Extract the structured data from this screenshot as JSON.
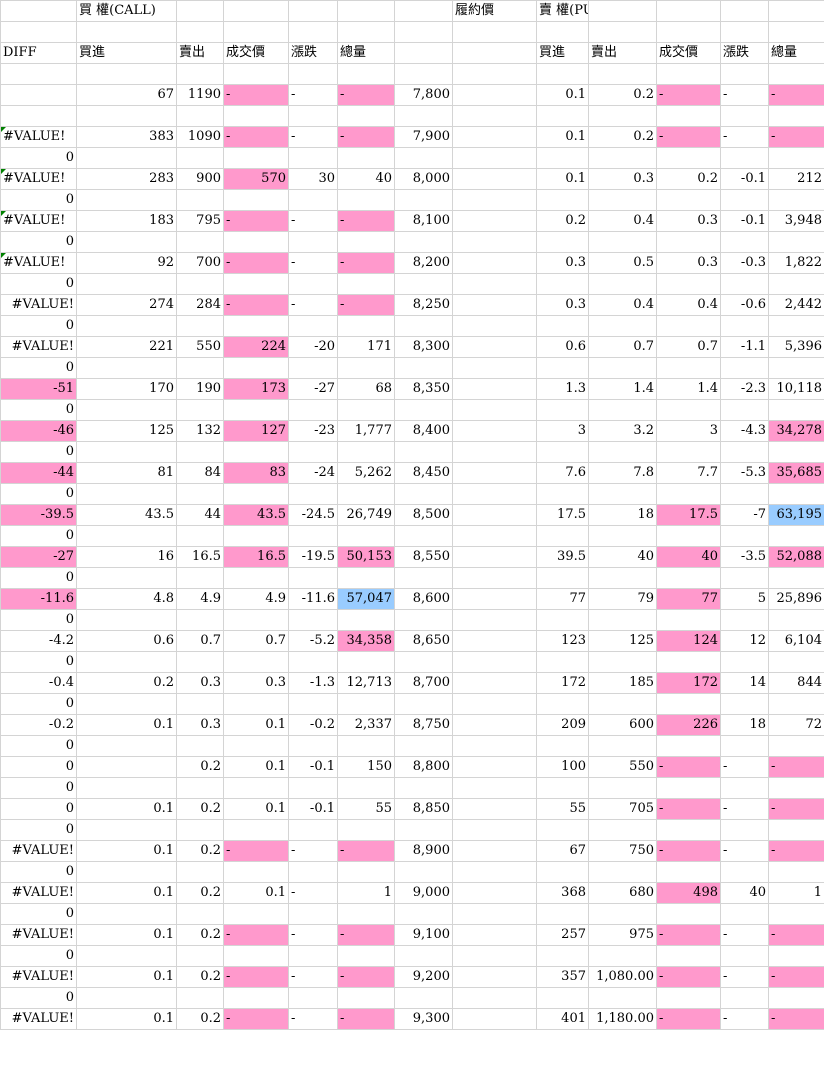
{
  "header1": {
    "call_title": "買 權(CALL)",
    "strike_title": "履約價",
    "put_title": "賣 權(PUT)"
  },
  "header2": {
    "diff": "DIFF",
    "call_bid": "買進",
    "call_ask": "賣出",
    "call_last": "成交價",
    "call_chg": "漲跌",
    "call_vol": "總量",
    "put_bid": "買進",
    "put_ask": "賣出",
    "put_last": "成交價",
    "put_chg": "漲跌",
    "put_vol": "總量"
  },
  "columns": [
    "diff",
    "call_bid",
    "call_ask",
    "call_last",
    "call_chg",
    "call_vol",
    "strike",
    "put_bid",
    "put_ask",
    "put_last",
    "put_chg",
    "put_vol"
  ],
  "rows": [
    {
      "sub": "",
      "diff": "",
      "call_bid": "67",
      "call_ask": "1190",
      "call_last": "-",
      "call_chg": "-",
      "call_vol": "-",
      "strike": "7,800",
      "put_bid": "0.1",
      "put_ask": "0.2",
      "put_last": "-",
      "put_chg": "-",
      "put_vol": "-"
    },
    {
      "sub": "",
      "diff": "#VALUE!",
      "call_bid": "383",
      "call_ask": "1090",
      "call_last": "-",
      "call_chg": "-",
      "call_vol": "-",
      "strike": "7,900",
      "put_bid": "0.1",
      "put_ask": "0.2",
      "put_last": "-",
      "put_chg": "-",
      "put_vol": "-"
    },
    {
      "sub": "0",
      "diff": "#VALUE!",
      "call_bid": "283",
      "call_ask": "900",
      "call_last": "570",
      "call_chg": "30",
      "call_vol": "40",
      "strike": "8,000",
      "put_bid": "0.1",
      "put_ask": "0.3",
      "put_last": "0.2",
      "put_chg": "-0.1",
      "put_vol": "212"
    },
    {
      "sub": "0",
      "diff": "#VALUE!",
      "call_bid": "183",
      "call_ask": "795",
      "call_last": "-",
      "call_chg": "-",
      "call_vol": "-",
      "strike": "8,100",
      "put_bid": "0.2",
      "put_ask": "0.4",
      "put_last": "0.3",
      "put_chg": "-0.1",
      "put_vol": "3,948"
    },
    {
      "sub": "0",
      "diff": "#VALUE!",
      "call_bid": "92",
      "call_ask": "700",
      "call_last": "-",
      "call_chg": "-",
      "call_vol": "-",
      "strike": "8,200",
      "put_bid": "0.3",
      "put_ask": "0.5",
      "put_last": "0.3",
      "put_chg": "-0.3",
      "put_vol": "1,822"
    },
    {
      "sub": "0",
      "diff": "#VALUE!",
      "call_bid": "274",
      "call_ask": "284",
      "call_last": "-",
      "call_chg": "-",
      "call_vol": "-",
      "strike": "8,250",
      "put_bid": "0.3",
      "put_ask": "0.4",
      "put_last": "0.4",
      "put_chg": "-0.6",
      "put_vol": "2,442"
    },
    {
      "sub": "0",
      "diff": "#VALUE!",
      "call_bid": "221",
      "call_ask": "550",
      "call_last": "224",
      "call_chg": "-20",
      "call_vol": "171",
      "strike": "8,300",
      "put_bid": "0.6",
      "put_ask": "0.7",
      "put_last": "0.7",
      "put_chg": "-1.1",
      "put_vol": "5,396"
    },
    {
      "sub": "0",
      "diff": "-51",
      "call_bid": "170",
      "call_ask": "190",
      "call_last": "173",
      "call_chg": "-27",
      "call_vol": "68",
      "strike": "8,350",
      "put_bid": "1.3",
      "put_ask": "1.4",
      "put_last": "1.4",
      "put_chg": "-2.3",
      "put_vol": "10,118"
    },
    {
      "sub": "0",
      "diff": "-46",
      "call_bid": "125",
      "call_ask": "132",
      "call_last": "127",
      "call_chg": "-23",
      "call_vol": "1,777",
      "strike": "8,400",
      "put_bid": "3",
      "put_ask": "3.2",
      "put_last": "3",
      "put_chg": "-4.3",
      "put_vol": "34,278"
    },
    {
      "sub": "0",
      "diff": "-44",
      "call_bid": "81",
      "call_ask": "84",
      "call_last": "83",
      "call_chg": "-24",
      "call_vol": "5,262",
      "strike": "8,450",
      "put_bid": "7.6",
      "put_ask": "7.8",
      "put_last": "7.7",
      "put_chg": "-5.3",
      "put_vol": "35,685"
    },
    {
      "sub": "0",
      "diff": "-39.5",
      "call_bid": "43.5",
      "call_ask": "44",
      "call_last": "43.5",
      "call_chg": "-24.5",
      "call_vol": "26,749",
      "strike": "8,500",
      "put_bid": "17.5",
      "put_ask": "18",
      "put_last": "17.5",
      "put_chg": "-7",
      "put_vol": "63,195"
    },
    {
      "sub": "0",
      "diff": "-27",
      "call_bid": "16",
      "call_ask": "16.5",
      "call_last": "16.5",
      "call_chg": "-19.5",
      "call_vol": "50,153",
      "strike": "8,550",
      "put_bid": "39.5",
      "put_ask": "40",
      "put_last": "40",
      "put_chg": "-3.5",
      "put_vol": "52,088"
    },
    {
      "sub": "0",
      "diff": "-11.6",
      "call_bid": "4.8",
      "call_ask": "4.9",
      "call_last": "4.9",
      "call_chg": "-11.6",
      "call_vol": "57,047",
      "strike": "8,600",
      "put_bid": "77",
      "put_ask": "79",
      "put_last": "77",
      "put_chg": "5",
      "put_vol": "25,896"
    },
    {
      "sub": "0",
      "diff": "-4.2",
      "call_bid": "0.6",
      "call_ask": "0.7",
      "call_last": "0.7",
      "call_chg": "-5.2",
      "call_vol": "34,358",
      "strike": "8,650",
      "put_bid": "123",
      "put_ask": "125",
      "put_last": "124",
      "put_chg": "12",
      "put_vol": "6,104"
    },
    {
      "sub": "0",
      "diff": "-0.4",
      "call_bid": "0.2",
      "call_ask": "0.3",
      "call_last": "0.3",
      "call_chg": "-1.3",
      "call_vol": "12,713",
      "strike": "8,700",
      "put_bid": "172",
      "put_ask": "185",
      "put_last": "172",
      "put_chg": "14",
      "put_vol": "844"
    },
    {
      "sub": "0",
      "diff": "-0.2",
      "call_bid": "0.1",
      "call_ask": "0.3",
      "call_last": "0.1",
      "call_chg": "-0.2",
      "call_vol": "2,337",
      "strike": "8,750",
      "put_bid": "209",
      "put_ask": "600",
      "put_last": "226",
      "put_chg": "18",
      "put_vol": "72"
    },
    {
      "sub": "0",
      "diff": "0",
      "call_bid": "",
      "call_ask": "0.2",
      "call_last": "0.1",
      "call_chg": "-0.1",
      "call_vol": "150",
      "strike": "8,800",
      "put_bid": "100",
      "put_ask": "550",
      "put_last": "-",
      "put_chg": "-",
      "put_vol": "-"
    },
    {
      "sub": "0",
      "diff": "0",
      "call_bid": "0.1",
      "call_ask": "0.2",
      "call_last": "0.1",
      "call_chg": "-0.1",
      "call_vol": "55",
      "strike": "8,850",
      "put_bid": "55",
      "put_ask": "705",
      "put_last": "-",
      "put_chg": "-",
      "put_vol": "-"
    },
    {
      "sub": "0",
      "diff": "#VALUE!",
      "call_bid": "0.1",
      "call_ask": "0.2",
      "call_last": "-",
      "call_chg": "-",
      "call_vol": "-",
      "strike": "8,900",
      "put_bid": "67",
      "put_ask": "750",
      "put_last": "-",
      "put_chg": "-",
      "put_vol": "-"
    },
    {
      "sub": "0",
      "diff": "#VALUE!",
      "call_bid": "0.1",
      "call_ask": "0.2",
      "call_last": "0.1",
      "call_chg": "-",
      "call_vol": "1",
      "strike": "9,000",
      "put_bid": "368",
      "put_ask": "680",
      "put_last": "498",
      "put_chg": "40",
      "put_vol": "1"
    },
    {
      "sub": "0",
      "diff": "#VALUE!",
      "call_bid": "0.1",
      "call_ask": "0.2",
      "call_last": "-",
      "call_chg": "-",
      "call_vol": "-",
      "strike": "9,100",
      "put_bid": "257",
      "put_ask": "975",
      "put_last": "-",
      "put_chg": "-",
      "put_vol": "-"
    },
    {
      "sub": "0",
      "diff": "#VALUE!",
      "call_bid": "0.1",
      "call_ask": "0.2",
      "call_last": "-",
      "call_chg": "-",
      "call_vol": "-",
      "strike": "9,200",
      "put_bid": "357",
      "put_ask": "1,080.00",
      "put_last": "-",
      "put_chg": "-",
      "put_vol": "-"
    },
    {
      "sub": "0",
      "diff": "#VALUE!",
      "call_bid": "0.1",
      "call_ask": "0.2",
      "call_last": "-",
      "call_chg": "-",
      "call_vol": "-",
      "strike": "9,300",
      "put_bid": "401",
      "put_ask": "1,180.00",
      "put_last": "-",
      "put_chg": "-",
      "put_vol": "-"
    }
  ],
  "highlight_colors": {
    "pink": "#ff99cc",
    "blue": "#99ccff",
    "error_marker": "#008000"
  },
  "highlights": {
    "pink": [
      "0.call_last",
      "0.call_vol",
      "0.put_last",
      "0.put_vol",
      "1.call_last",
      "1.call_vol",
      "1.put_last",
      "1.put_vol",
      "2.call_last",
      "3.call_last",
      "3.call_vol",
      "4.call_last",
      "4.call_vol",
      "5.call_last",
      "5.call_vol",
      "6.call_last",
      "7.diff",
      "7.call_last",
      "8.diff",
      "8.call_last",
      "8.put_vol",
      "9.diff",
      "9.call_last",
      "9.put_vol",
      "10.diff",
      "10.call_last",
      "10.put_last",
      "11.diff",
      "11.call_last",
      "11.call_vol",
      "11.put_last",
      "11.put_vol",
      "12.diff",
      "12.put_last",
      "13.call_vol",
      "13.put_last",
      "14.put_last",
      "15.put_last",
      "16.put_last",
      "16.put_vol",
      "17.put_last",
      "17.put_vol",
      "18.call_last",
      "18.call_vol",
      "18.put_last",
      "18.put_vol",
      "19.put_last",
      "20.call_last",
      "20.call_vol",
      "20.put_last",
      "20.put_vol",
      "21.call_last",
      "21.call_vol",
      "21.put_last",
      "21.put_vol",
      "22.call_last",
      "22.call_vol",
      "22.put_last",
      "22.put_vol"
    ],
    "blue": [
      "10.put_vol",
      "12.call_vol"
    ]
  },
  "error_marker_rows": [
    1,
    2,
    3,
    4
  ]
}
